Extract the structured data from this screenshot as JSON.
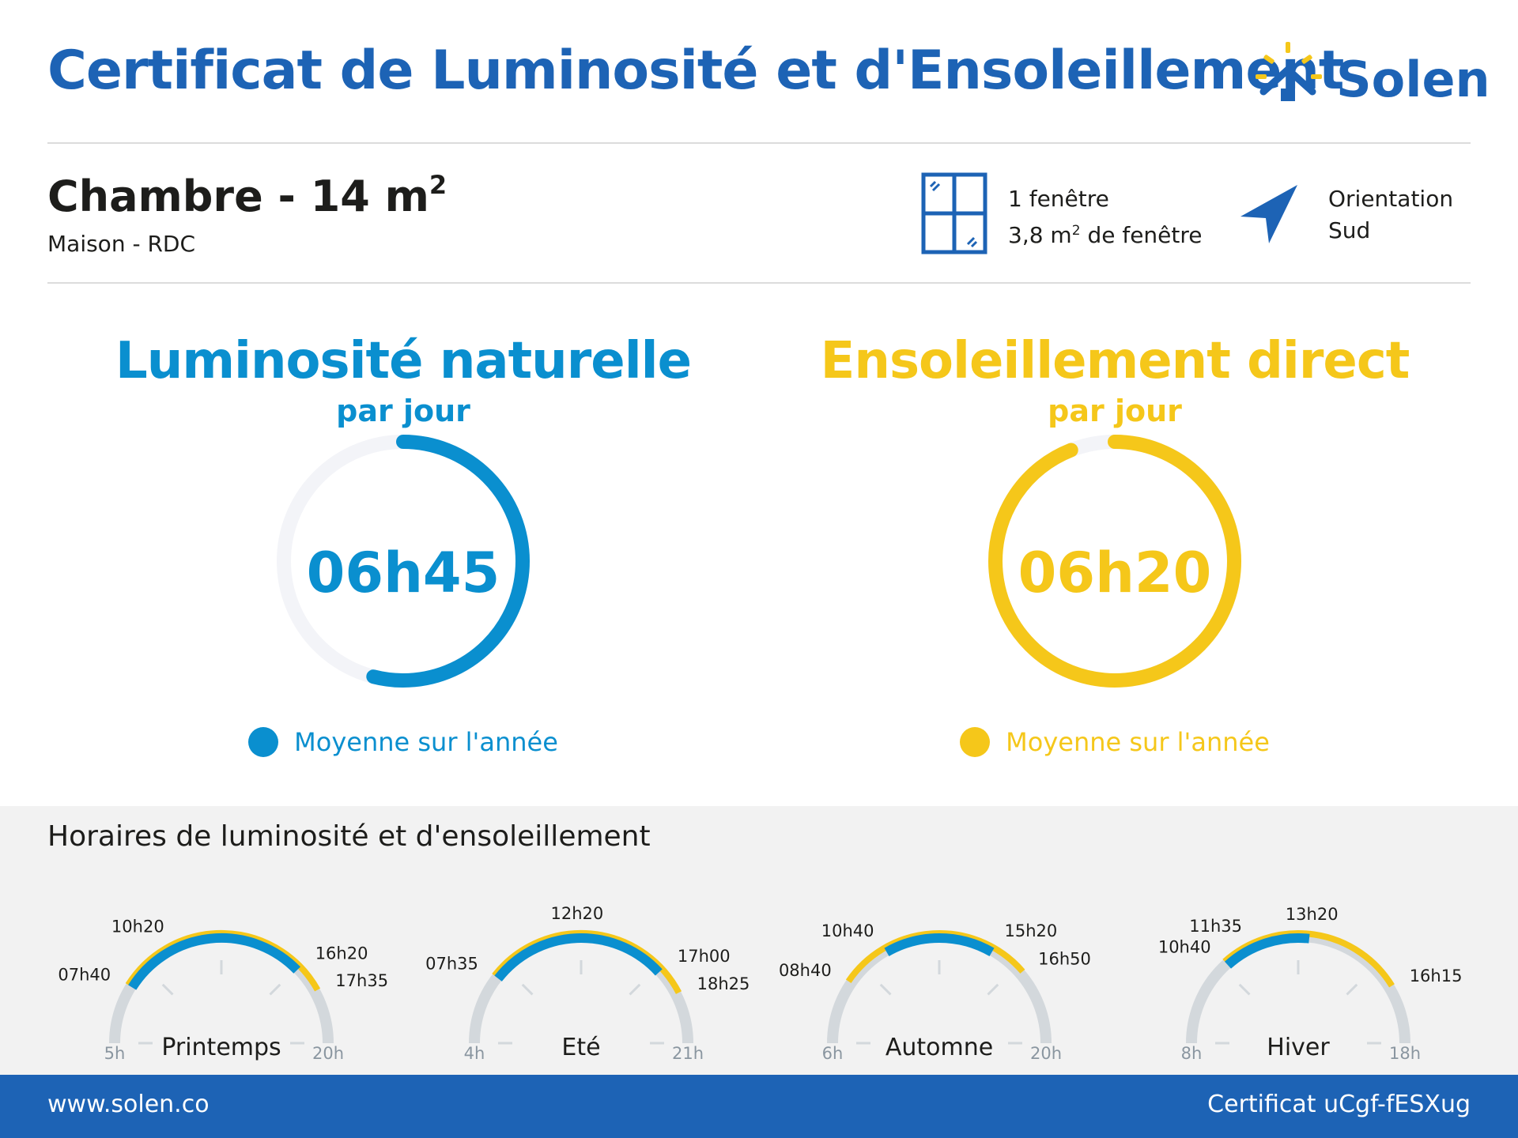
{
  "header": {
    "title": "Certificat de Luminosité et d'Ensoleillement",
    "brand": "Solen",
    "brand_icon": "sun-house-icon"
  },
  "room": {
    "name": "Chambre - 14 m",
    "area_exponent": "2",
    "location": "Maison - RDC"
  },
  "windows": {
    "icon": "window-icon",
    "count_label": "1 fenêtre",
    "area_prefix": "3,8 m",
    "area_exponent": "2",
    "area_suffix": " de fenêtre"
  },
  "orientation": {
    "icon": "navigation-arrow-icon",
    "label": "Orientation",
    "value": "Sud"
  },
  "luminosity": {
    "title": "Luminosité naturelle",
    "subtitle": "par jour",
    "value": "06h45",
    "fill_fraction": 0.54,
    "legend": "Moyenne sur l'année",
    "color": "#0a8fcf"
  },
  "sunshine": {
    "title": "Ensoleillement direct",
    "subtitle": "par jour",
    "value": "06h20",
    "fill_fraction": 0.94,
    "legend": "Moyenne sur l'année",
    "color": "#f5c71a"
  },
  "schedules": {
    "title": "Horaires de luminosité et d'ensoleillement",
    "seasons": [
      {
        "name": "Printemps",
        "start": "5h",
        "end": "20h",
        "sun_start": "10h20",
        "sun_end": "17h35",
        "light_start": "07h40",
        "light_end": "16h20"
      },
      {
        "name": "Eté",
        "start": "4h",
        "end": "21h",
        "sun_start": "12h20",
        "sun_end": "18h25",
        "light_start": "07h35",
        "light_end": "17h00"
      },
      {
        "name": "Automne",
        "start": "6h",
        "end": "20h",
        "sun_start": "08h40",
        "sun_end": "16h50",
        "light_start": "10h40",
        "light_end": "15h20"
      },
      {
        "name": "Hiver",
        "start": "8h",
        "end": "18h",
        "sun_start": "11h35",
        "sun_end": "16h15",
        "light_start": "10h40",
        "light_end": "13h20"
      }
    ]
  },
  "footer": {
    "website": "www.solen.co",
    "certificate": "Certificat uCgf-fESXug"
  }
}
